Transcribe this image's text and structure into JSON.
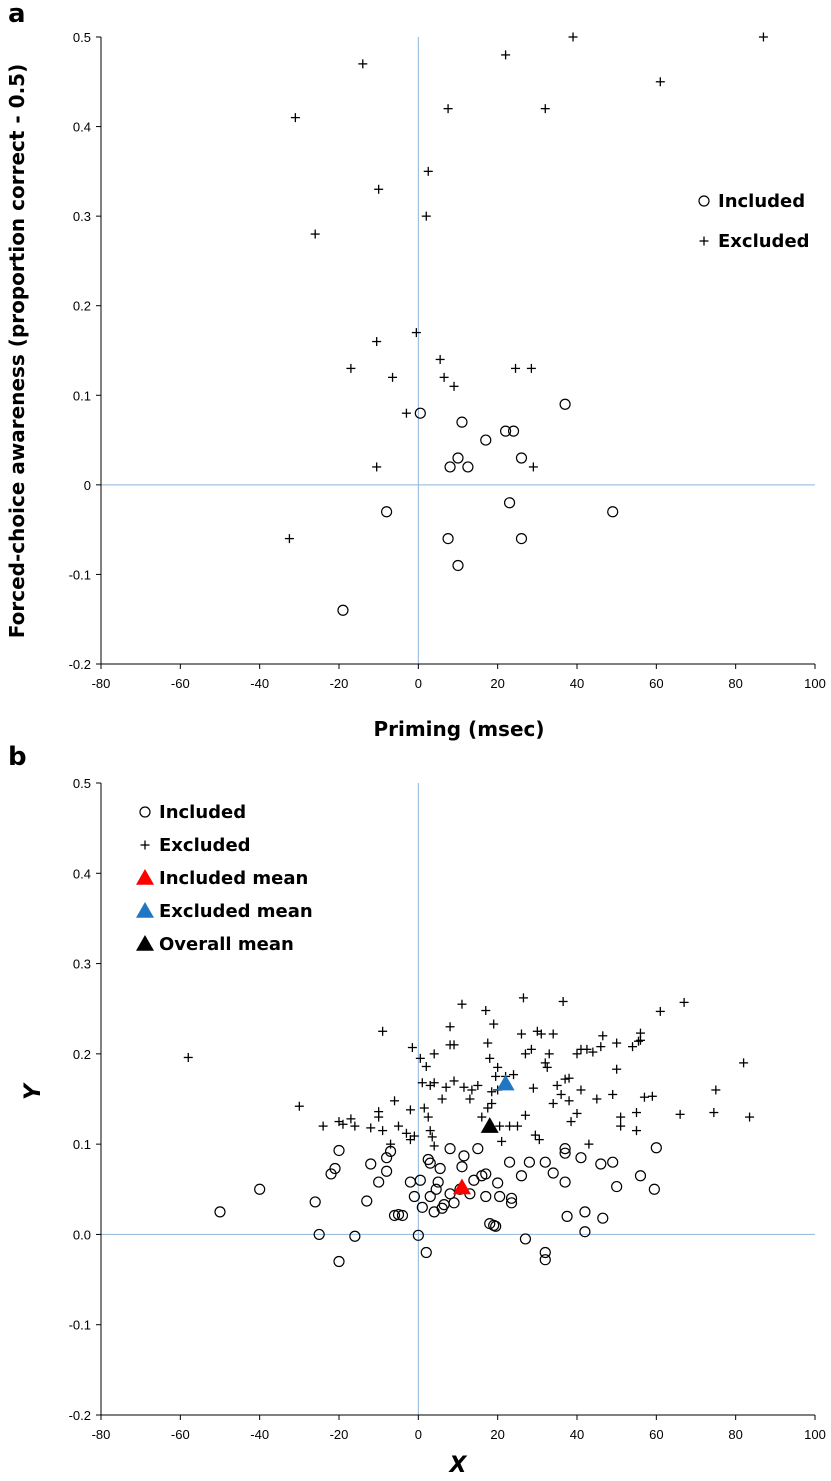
{
  "chart_data": [
    {
      "panel": "a",
      "type": "scatter",
      "xlabel": "Priming (msec)",
      "ylabel": "Forced-choice awareness (proportion correct - 0.5)",
      "xlim": [
        -80,
        100
      ],
      "ylim": [
        -0.2,
        0.5
      ],
      "x_ticks": [
        "-80",
        "-60",
        "-40",
        "-20",
        "0",
        "20",
        "40",
        "60",
        "80",
        "100"
      ],
      "y_ticks": [
        "0.5",
        "0.4",
        "0.3",
        "0.2",
        "0.1",
        "0",
        "-0.1",
        "-0.2"
      ],
      "reference_lines": {
        "x": 0,
        "y": 0
      },
      "legend": {
        "placement": "right",
        "entries": [
          {
            "label": "Included",
            "marker": "circle"
          },
          {
            "label": "Excluded",
            "marker": "plus"
          }
        ]
      },
      "series": [
        {
          "name": "Included",
          "marker": "circle",
          "points": [
            [
              0.5,
              0.08
            ],
            [
              11,
              0.07
            ],
            [
              22,
              0.06
            ],
            [
              24,
              0.06
            ],
            [
              17,
              0.05
            ],
            [
              26,
              0.03
            ],
            [
              10,
              0.03
            ],
            [
              8,
              0.02
            ],
            [
              12.5,
              0.02
            ],
            [
              37,
              0.09
            ],
            [
              23,
              -0.02
            ],
            [
              -8,
              -0.03
            ],
            [
              49,
              -0.03
            ],
            [
              7.5,
              -0.06
            ],
            [
              26,
              -0.06
            ],
            [
              10,
              -0.09
            ],
            [
              -19,
              -0.14
            ]
          ]
        },
        {
          "name": "Excluded",
          "marker": "plus",
          "points": [
            [
              39,
              0.5
            ],
            [
              87,
              0.5
            ],
            [
              22,
              0.48
            ],
            [
              -14,
              0.47
            ],
            [
              61,
              0.45
            ],
            [
              7.5,
              0.42
            ],
            [
              32,
              0.42
            ],
            [
              -31,
              0.41
            ],
            [
              2.5,
              0.35
            ],
            [
              -10,
              0.33
            ],
            [
              2,
              0.3
            ],
            [
              -26,
              0.28
            ],
            [
              -0.5,
              0.17
            ],
            [
              -10.5,
              0.16
            ],
            [
              5.5,
              0.14
            ],
            [
              -17,
              0.13
            ],
            [
              24.5,
              0.13
            ],
            [
              28.5,
              0.13
            ],
            [
              -6.5,
              0.12
            ],
            [
              6.5,
              0.12
            ],
            [
              9,
              0.11
            ],
            [
              -3,
              0.08
            ],
            [
              -10.5,
              0.02
            ],
            [
              29,
              0.02
            ],
            [
              -32.5,
              -0.06
            ]
          ]
        }
      ]
    },
    {
      "panel": "b",
      "type": "scatter",
      "xlabel": "X",
      "ylabel": "Y",
      "xlim": [
        -80,
        100
      ],
      "ylim": [
        -0.2,
        0.5
      ],
      "x_ticks": [
        "-80",
        "-60",
        "-40",
        "-20",
        "0",
        "20",
        "40",
        "60",
        "80",
        "100"
      ],
      "y_ticks": [
        "0.5",
        "0.4",
        "0.3",
        "0.2",
        "0.1",
        "0.0",
        "-0.1",
        "-0.2"
      ],
      "reference_lines": {
        "x": 0,
        "y": 0
      },
      "legend": {
        "placement": "top-left",
        "entries": [
          {
            "label": "Included",
            "marker": "circle",
            "color": "#000000"
          },
          {
            "label": "Excluded",
            "marker": "plus",
            "color": "#000000"
          },
          {
            "label": "Included mean",
            "marker": "triangle",
            "color": "#ff0000"
          },
          {
            "label": "Excluded mean",
            "marker": "triangle",
            "color": "#1f77c4"
          },
          {
            "label": "Overall mean",
            "marker": "triangle",
            "color": "#000000"
          }
        ]
      },
      "series": [
        {
          "name": "Included",
          "marker": "circle",
          "points": [
            [
              -50,
              0.025
            ],
            [
              -40,
              0.05
            ],
            [
              -26,
              0.036
            ],
            [
              -25,
              0.0
            ],
            [
              -22,
              0.067
            ],
            [
              -21,
              0.073
            ],
            [
              -20,
              0.093
            ],
            [
              -20,
              -0.03
            ],
            [
              -16,
              -0.002
            ],
            [
              -13,
              0.037
            ],
            [
              -12,
              0.078
            ],
            [
              -10,
              0.058
            ],
            [
              -8,
              0.085
            ],
            [
              -8,
              0.07
            ],
            [
              -7,
              0.092
            ],
            [
              -6,
              0.021
            ],
            [
              -5,
              0.022
            ],
            [
              -4,
              0.021
            ],
            [
              -2,
              0.058
            ],
            [
              -1,
              0.042
            ],
            [
              0,
              -0.001
            ],
            [
              0.5,
              0.06
            ],
            [
              1,
              0.03
            ],
            [
              2,
              -0.02
            ],
            [
              2.5,
              0.083
            ],
            [
              3,
              0.079
            ],
            [
              3,
              0.042
            ],
            [
              4,
              0.025
            ],
            [
              4.5,
              0.05
            ],
            [
              5,
              0.058
            ],
            [
              5.5,
              0.073
            ],
            [
              6,
              0.029
            ],
            [
              6.5,
              0.033
            ],
            [
              8,
              0.095
            ],
            [
              8,
              0.045
            ],
            [
              9,
              0.035
            ],
            [
              10.5,
              0.05
            ],
            [
              11,
              0.075
            ],
            [
              11.5,
              0.087
            ],
            [
              13,
              0.045
            ],
            [
              14,
              0.06
            ],
            [
              15,
              0.095
            ],
            [
              16,
              0.065
            ],
            [
              17,
              0.042
            ],
            [
              17,
              0.067
            ],
            [
              18,
              0.012
            ],
            [
              19,
              0.01
            ],
            [
              19.5,
              0.009
            ],
            [
              20,
              0.057
            ],
            [
              20.5,
              0.042
            ],
            [
              23,
              0.08
            ],
            [
              23.5,
              0.04
            ],
            [
              23.5,
              0.035
            ],
            [
              26,
              0.065
            ],
            [
              27,
              -0.005
            ],
            [
              28,
              0.08
            ],
            [
              32,
              0.08
            ],
            [
              32,
              -0.02
            ],
            [
              32,
              -0.028
            ],
            [
              34,
              0.068
            ],
            [
              37,
              0.095
            ],
            [
              37,
              0.09
            ],
            [
              37,
              0.058
            ],
            [
              37.5,
              0.02
            ],
            [
              41,
              0.085
            ],
            [
              42,
              0.025
            ],
            [
              42,
              0.003
            ],
            [
              46,
              0.078
            ],
            [
              46.5,
              0.018
            ],
            [
              49,
              0.08
            ],
            [
              50,
              0.053
            ],
            [
              56,
              0.065
            ],
            [
              59.5,
              0.05
            ],
            [
              60,
              0.096
            ]
          ]
        },
        {
          "name": "Excluded",
          "marker": "plus",
          "points": [
            [
              -58,
              0.196
            ],
            [
              -30,
              0.142
            ],
            [
              -24,
              0.12
            ],
            [
              -20,
              0.125
            ],
            [
              -19,
              0.122
            ],
            [
              -17,
              0.128
            ],
            [
              -16,
              0.12
            ],
            [
              -12,
              0.118
            ],
            [
              -10,
              0.136
            ],
            [
              -10,
              0.13
            ],
            [
              -9,
              0.225
            ],
            [
              -9,
              0.115
            ],
            [
              -7,
              0.1
            ],
            [
              -6,
              0.148
            ],
            [
              -5,
              0.12
            ],
            [
              -3,
              0.112
            ],
            [
              -2,
              0.105
            ],
            [
              -2,
              0.138
            ],
            [
              -1.5,
              0.207
            ],
            [
              -1,
              0.109
            ],
            [
              0.5,
              0.195
            ],
            [
              1,
              0.168
            ],
            [
              1.5,
              0.14
            ],
            [
              2,
              0.186
            ],
            [
              2.5,
              0.13
            ],
            [
              3,
              0.165
            ],
            [
              3,
              0.115
            ],
            [
              3.5,
              0.108
            ],
            [
              4,
              0.2
            ],
            [
              4,
              0.168
            ],
            [
              4,
              0.098
            ],
            [
              6,
              0.15
            ],
            [
              7,
              0.163
            ],
            [
              8,
              0.23
            ],
            [
              8,
              0.21
            ],
            [
              9,
              0.21
            ],
            [
              9,
              0.17
            ],
            [
              11,
              0.255
            ],
            [
              11.5,
              0.163
            ],
            [
              13,
              0.15
            ],
            [
              13.5,
              0.16
            ],
            [
              15,
              0.165
            ],
            [
              16,
              0.13
            ],
            [
              17,
              0.248
            ],
            [
              17.5,
              0.212
            ],
            [
              17.5,
              0.14
            ],
            [
              18,
              0.195
            ],
            [
              18.5,
              0.145
            ],
            [
              18.5,
              0.158
            ],
            [
              19,
              0.233
            ],
            [
              19.5,
              0.175
            ],
            [
              20,
              0.185
            ],
            [
              20,
              0.16
            ],
            [
              20.5,
              0.12
            ],
            [
              21,
              0.103
            ],
            [
              22,
              0.175
            ],
            [
              23,
              0.12
            ],
            [
              24,
              0.177
            ],
            [
              25,
              0.12
            ],
            [
              26,
              0.222
            ],
            [
              26.5,
              0.262
            ],
            [
              27,
              0.2
            ],
            [
              27,
              0.132
            ],
            [
              28.5,
              0.205
            ],
            [
              29,
              0.162
            ],
            [
              29.5,
              0.11
            ],
            [
              30,
              0.225
            ],
            [
              30.5,
              0.105
            ],
            [
              31,
              0.222
            ],
            [
              32,
              0.19
            ],
            [
              32.5,
              0.185
            ],
            [
              33,
              0.2
            ],
            [
              34,
              0.222
            ],
            [
              34,
              0.145
            ],
            [
              35,
              0.165
            ],
            [
              36,
              0.155
            ],
            [
              36.5,
              0.258
            ],
            [
              37,
              0.172
            ],
            [
              38,
              0.173
            ],
            [
              38,
              0.148
            ],
            [
              38.5,
              0.125
            ],
            [
              40,
              0.2
            ],
            [
              40,
              0.134
            ],
            [
              41,
              0.16
            ],
            [
              41,
              0.205
            ],
            [
              42.5,
              0.205
            ],
            [
              43,
              0.1
            ],
            [
              44,
              0.202
            ],
            [
              45,
              0.15
            ],
            [
              46,
              0.208
            ],
            [
              46.5,
              0.22
            ],
            [
              49,
              0.155
            ],
            [
              50,
              0.212
            ],
            [
              50,
              0.183
            ],
            [
              51,
              0.13
            ],
            [
              51,
              0.12
            ],
            [
              54,
              0.208
            ],
            [
              55,
              0.115
            ],
            [
              55,
              0.135
            ],
            [
              55.5,
              0.214
            ],
            [
              56,
              0.215
            ],
            [
              56,
              0.223
            ],
            [
              57,
              0.152
            ],
            [
              59,
              0.153
            ],
            [
              61,
              0.247
            ],
            [
              66,
              0.133
            ],
            [
              67,
              0.257
            ],
            [
              74.5,
              0.135
            ],
            [
              75,
              0.16
            ],
            [
              82,
              0.19
            ],
            [
              83.5,
              0.13
            ]
          ]
        },
        {
          "name": "Included mean",
          "marker": "triangle",
          "color": "#ff0000",
          "points": [
            [
              11,
              0.052
            ]
          ]
        },
        {
          "name": "Excluded mean",
          "marker": "triangle",
          "color": "#1f77c4",
          "points": [
            [
              22,
              0.167
            ]
          ]
        },
        {
          "name": "Overall mean",
          "marker": "triangle",
          "color": "#000000",
          "points": [
            [
              18,
              0.12
            ]
          ]
        }
      ]
    }
  ]
}
